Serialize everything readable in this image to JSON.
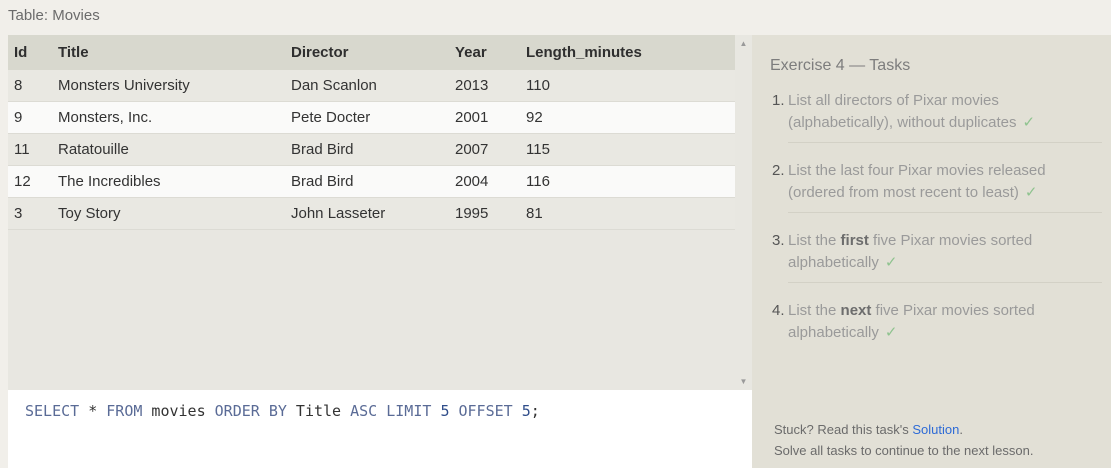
{
  "table_caption": "Table: Movies",
  "table": {
    "columns": [
      "Id",
      "Title",
      "Director",
      "Year",
      "Length_minutes"
    ],
    "rows": [
      [
        "8",
        "Monsters University",
        "Dan Scanlon",
        "2013",
        "110"
      ],
      [
        "9",
        "Monsters, Inc.",
        "Pete Docter",
        "2001",
        "92"
      ],
      [
        "11",
        "Ratatouille",
        "Brad Bird",
        "2007",
        "115"
      ],
      [
        "12",
        "The Incredibles",
        "Brad Bird",
        "2004",
        "116"
      ],
      [
        "3",
        "Toy Story",
        "John Lasseter",
        "1995",
        "81"
      ]
    ]
  },
  "scrollbar": {
    "up_icon": "▲",
    "down_icon": "▼"
  },
  "editor": {
    "tokens": [
      {
        "t": "SELECT",
        "k": "kw"
      },
      {
        "t": " * ",
        "k": "plain"
      },
      {
        "t": "FROM",
        "k": "kw"
      },
      {
        "t": " movies ",
        "k": "plain"
      },
      {
        "t": "ORDER BY",
        "k": "kw"
      },
      {
        "t": " Title ",
        "k": "plain"
      },
      {
        "t": "ASC",
        "k": "kw"
      },
      {
        "t": " ",
        "k": "plain"
      },
      {
        "t": "LIMIT",
        "k": "kw"
      },
      {
        "t": " ",
        "k": "plain"
      },
      {
        "t": "5",
        "k": "num"
      },
      {
        "t": " ",
        "k": "plain"
      },
      {
        "t": "OFFSET",
        "k": "kw"
      },
      {
        "t": " ",
        "k": "plain"
      },
      {
        "t": "5",
        "k": "num"
      },
      {
        "t": ";",
        "k": "plain"
      }
    ]
  },
  "exercise": {
    "title": "Exercise 4 — Tasks",
    "tasks": [
      {
        "num": "1.",
        "parts": [
          {
            "t": "List all directors of Pixar movies (alphabetically), without duplicates",
            "b": false
          }
        ]
      },
      {
        "num": "2.",
        "parts": [
          {
            "t": "List the last four Pixar movies released (ordered from most recent to least)",
            "b": false
          }
        ]
      },
      {
        "num": "3.",
        "parts": [
          {
            "t": "List the ",
            "b": false
          },
          {
            "t": "first",
            "b": true
          },
          {
            "t": " five Pixar movies sorted alphabetically",
            "b": false
          }
        ]
      },
      {
        "num": "4.",
        "parts": [
          {
            "t": "List the ",
            "b": false
          },
          {
            "t": "next",
            "b": true
          },
          {
            "t": " five Pixar movies sorted alphabetically",
            "b": false
          }
        ]
      }
    ],
    "check_icon": "✓",
    "accent_check": "#8fc38f"
  },
  "footer": {
    "stuck_prefix": "Stuck? Read this task's ",
    "solution_link": "Solution",
    "stuck_suffix": ".",
    "continue_text": "Solve all tasks to continue to the next lesson."
  },
  "colors": {
    "link": "#2e6bd6",
    "keyword": "#5a6b96"
  }
}
